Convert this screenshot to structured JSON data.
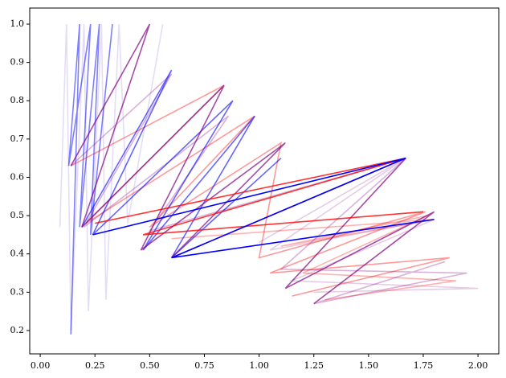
{
  "chart_data": {
    "type": "line",
    "xlim": [
      -0.048,
      2.095
    ],
    "ylim": [
      0.139,
      1.042
    ],
    "xticks": [
      {
        "value": 0,
        "label": "0.00"
      },
      0.25,
      {
        "value": 0.5,
        "label": "0.50"
      },
      0.75,
      {
        "value": 1,
        "label": "1.00"
      },
      1.25,
      {
        "value": 1.5,
        "label": "1.50"
      },
      1.75,
      {
        "value": 2,
        "label": "2.00"
      }
    ],
    "yticks": [
      0.2,
      0.3,
      0.4,
      0.5,
      0.6,
      0.7,
      0.8,
      0.9,
      {
        "value": 1,
        "label": "1.0"
      }
    ],
    "series": [
      {
        "color": "#ccbbee",
        "alpha": 0.5,
        "x": [
          0.09,
          0.12,
          0.14,
          0.2,
          0.22,
          0.28,
          0.3,
          0.36,
          0.4,
          0.56
        ],
        "values": [
          0.47,
          1.0,
          0.2,
          1.0,
          0.25,
          1.0,
          0.28,
          1.0,
          0.48,
          1.0
        ]
      },
      {
        "color": "#0000ff",
        "alpha": 0.5,
        "x": [
          0.14,
          0.18,
          0.13,
          0.23,
          0.18,
          0.27,
          0.23,
          0.33
        ],
        "values": [
          0.19,
          1.0,
          0.63,
          1.0,
          0.47,
          1.0,
          0.45,
          1.0
        ]
      },
      {
        "color": "#800080",
        "alpha": 0.2,
        "x": [
          1.0,
          1.67,
          1.05,
          1.8,
          1.15,
          2.0,
          1.25
        ],
        "values": [
          0.43,
          0.65,
          0.41,
          0.49,
          0.33,
          0.31,
          0.3
        ]
      },
      {
        "color": "#ff0000",
        "alpha": 0.3,
        "x": [
          0.6,
          1.8,
          1.1,
          1.77,
          1.2,
          1.9,
          1.3
        ],
        "values": [
          0.44,
          0.49,
          0.42,
          0.5,
          0.35,
          0.33,
          0.28
        ]
      },
      {
        "color": "#800080",
        "alpha": 0.3,
        "x": [
          0.14,
          0.6,
          0.2,
          0.86,
          0.5,
          1.67,
          1.1,
          1.95,
          1.25,
          1.85
        ],
        "values": [
          0.63,
          0.87,
          0.47,
          0.76,
          0.46,
          0.65,
          0.36,
          0.35,
          0.27,
          0.38
        ]
      },
      {
        "color": "#ff0000",
        "alpha": 0.4,
        "x": [
          0.14,
          0.84,
          0.21,
          0.98,
          0.5,
          1.1,
          1.0,
          1.76,
          1.05,
          1.87,
          1.15
        ],
        "values": [
          0.63,
          0.84,
          0.48,
          0.76,
          0.47,
          0.69,
          0.39,
          0.51,
          0.35,
          0.39,
          0.29
        ]
      },
      {
        "color": "#0000ff",
        "alpha": 0.6,
        "x": [
          0.19,
          0.6,
          0.24,
          0.88,
          0.47,
          0.98,
          0.6,
          1.1
        ],
        "values": [
          0.47,
          0.88,
          0.45,
          0.8,
          0.41,
          0.76,
          0.39,
          0.65
        ]
      },
      {
        "color": "#800080",
        "alpha": 0.7,
        "x": [
          0.14,
          0.5,
          0.19,
          0.84,
          0.46,
          1.12,
          0.6,
          1.67,
          1.12,
          1.8,
          1.25
        ],
        "values": [
          0.63,
          1.0,
          0.47,
          0.84,
          0.41,
          0.69,
          0.39,
          0.65,
          0.31,
          0.51,
          0.27
        ]
      },
      {
        "color": "#ff0000",
        "alpha": 0.8,
        "x": [
          0.25,
          1.67,
          0.47,
          1.75
        ],
        "values": [
          0.48,
          0.65,
          0.45,
          0.51
        ]
      },
      {
        "color": "#0000ff",
        "alpha": 1,
        "x": [
          0.24,
          1.67,
          0.6,
          1.8
        ],
        "values": [
          0.45,
          0.65,
          0.39,
          0.49
        ]
      }
    ]
  }
}
